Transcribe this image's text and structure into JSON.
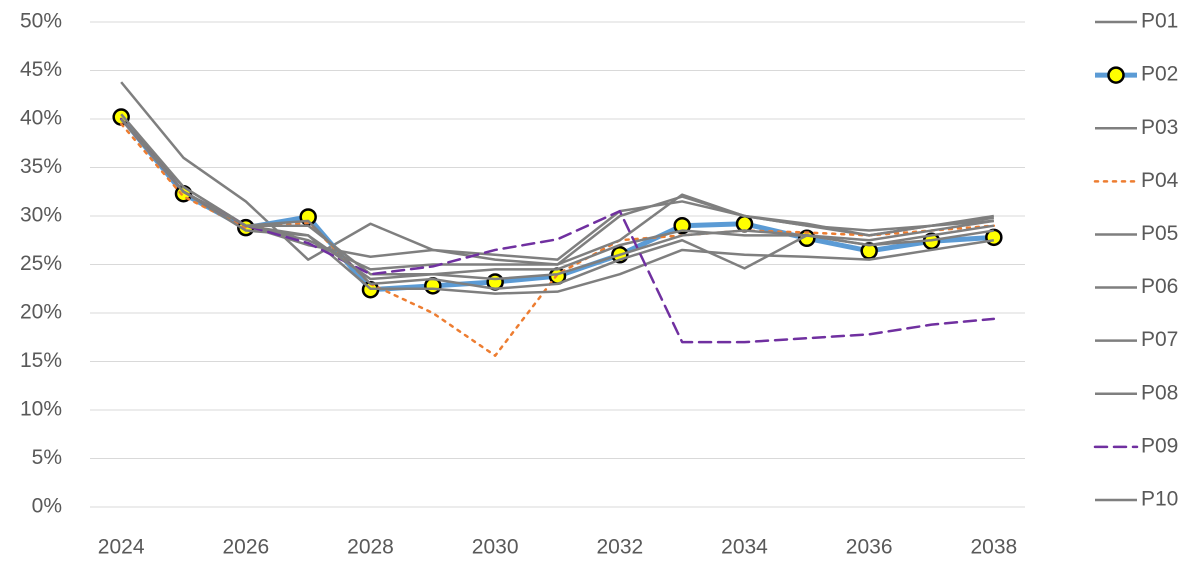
{
  "chart_data": {
    "type": "line",
    "x": [
      2024,
      2025,
      2026,
      2027,
      2028,
      2029,
      2030,
      2031,
      2032,
      2033,
      2034,
      2035,
      2036,
      2037,
      2038
    ],
    "xlim": [
      2023.5,
      2038.5
    ],
    "xticks": [
      2024,
      2026,
      2028,
      2030,
      2032,
      2034,
      2036,
      2038
    ],
    "ylim": [
      0,
      50
    ],
    "yticks": [
      {
        "value": 0,
        "label": "0%"
      },
      {
        "value": 5,
        "label": "5%"
      },
      {
        "value": 10,
        "label": "10%"
      },
      {
        "value": 15,
        "label": "15%"
      },
      {
        "value": 20,
        "label": "20%"
      },
      {
        "value": 25,
        "label": "25%"
      },
      {
        "value": 30,
        "label": "30%"
      },
      {
        "value": 35,
        "label": "35%"
      },
      {
        "value": 40,
        "label": "40%"
      },
      {
        "value": 45,
        "label": "45%"
      },
      {
        "value": 50,
        "label": "50%"
      }
    ],
    "grid": true,
    "legend": "right",
    "series": [
      {
        "name": "P01",
        "color": "#7f7f7f",
        "values": [
          43.8,
          36,
          31.5,
          25.5,
          29.2,
          26.5,
          25.5,
          25,
          30,
          32,
          30,
          29,
          28.5,
          29,
          30
        ]
      },
      {
        "name": "P02",
        "color": "#5b9bd5",
        "line_width": 5,
        "marker": true,
        "values": [
          40.2,
          32.3,
          28.8,
          29.9,
          22.4,
          22.8,
          23.2,
          23.8,
          26,
          29,
          29.2,
          27.7,
          26.4,
          27.4,
          27.8
        ]
      },
      {
        "name": "P03",
        "color": "#7f7f7f",
        "values": [
          40,
          33,
          29,
          27,
          25.8,
          26.5,
          26,
          25.5,
          30.5,
          31.5,
          30,
          29,
          28,
          29,
          29.5
        ]
      },
      {
        "name": "P04",
        "color": "#ed7d31",
        "dash": "dot",
        "values": [
          39.5,
          32,
          28.8,
          29.3,
          23,
          20,
          15.6,
          24,
          27.5,
          28,
          28.5,
          28.3,
          28,
          28.5,
          29
        ]
      },
      {
        "name": "P05",
        "color": "#7f7f7f",
        "values": [
          40,
          32.5,
          28.5,
          28,
          22.5,
          22.5,
          22,
          22.2,
          24,
          26.5,
          26,
          25.8,
          25.5,
          26.5,
          27.5
        ]
      },
      {
        "name": "P06",
        "color": "#7f7f7f",
        "values": [
          40,
          32.5,
          29,
          29.5,
          23,
          23.5,
          22.5,
          23,
          25.5,
          27.5,
          24.6,
          28,
          27,
          28,
          29
        ]
      },
      {
        "name": "P07",
        "color": "#7f7f7f",
        "values": [
          40,
          32.5,
          29,
          29,
          24,
          24,
          24.5,
          24.5,
          27,
          28.5,
          28,
          28,
          27.5,
          28.5,
          29.5
        ]
      },
      {
        "name": "P08",
        "color": "#7f7f7f",
        "values": [
          40.5,
          33,
          29,
          27.5,
          24.5,
          25,
          25,
          25,
          27.5,
          32.2,
          30,
          29.2,
          28,
          29,
          29.8
        ]
      },
      {
        "name": "P09",
        "color": "#7030a0",
        "dash": "dash",
        "values": [
          40,
          32.5,
          29,
          27.2,
          24,
          24.8,
          26.5,
          27.6,
          30.5,
          17,
          17,
          17.4,
          17.8,
          18.8,
          19.4
        ]
      },
      {
        "name": "P10",
        "color": "#7f7f7f",
        "values": [
          40,
          32.5,
          29,
          28,
          23.5,
          24,
          23.5,
          24,
          26,
          28,
          28.5,
          28,
          27,
          27.5,
          28.5
        ]
      }
    ]
  }
}
